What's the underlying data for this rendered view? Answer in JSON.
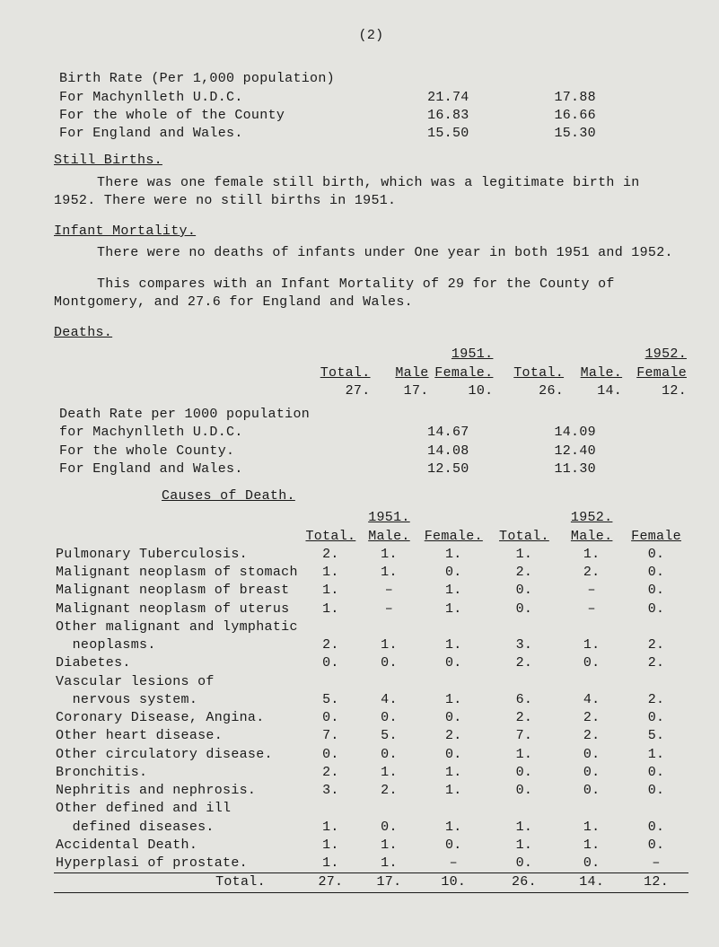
{
  "page_number": "(2)",
  "section_birth": {
    "heading": "Birth Rate (Per 1,000 population)",
    "rows": [
      {
        "label": "For Machynlleth U.D.C.",
        "v1": "21.74",
        "v2": "17.88"
      },
      {
        "label": "For the whole of the County",
        "v1": "16.83",
        "v2": "16.66"
      },
      {
        "label": "For England and Wales.",
        "v1": "15.50",
        "v2": "15.30"
      }
    ]
  },
  "still_births_heading": "Still Births.",
  "still_p1": "There was one female still birth, which was a legitimate birth in 1952.  There were no still births in 1951.",
  "infant_heading": "Infant Mortality.",
  "infant_p1": "There were no deaths of infants under One year in both 1951 and 1952.",
  "infant_p2": "This compares with an Infant Mortality of 29 for the County of Montgomery, and 27.6 for England and Wales.",
  "deaths_heading": "Deaths.",
  "deaths_years": {
    "y1": "1951.",
    "y2": "1952."
  },
  "deaths_cols": {
    "total1": "Total.",
    "male1": "Male",
    "female1": "Female.",
    "total2": "Total.",
    "male2": "Male.",
    "female2": "Female"
  },
  "deaths_nums": {
    "a": "27.",
    "b": "17.",
    "c": "10.",
    "d": "26.",
    "e": "14.",
    "f": "12."
  },
  "death_rate_rows": [
    {
      "label": "Death Rate per 1000 population",
      "v1": "",
      "v2": ""
    },
    {
      "label": "for Machynlleth U.D.C.",
      "v1": "14.67",
      "v2": "14.09"
    },
    {
      "label": "For the whole County.",
      "v1": "14.08",
      "v2": "12.40"
    },
    {
      "label": "For England and Wales.",
      "v1": "12.50",
      "v2": "11.30"
    }
  ],
  "causes_heading": "Causes of Death.",
  "causes_years": {
    "y1": "1951.",
    "y2": "1952."
  },
  "causes_cols": {
    "total1": "Total.",
    "male1": "Male.",
    "female1": "Female.",
    "total2": "Total.",
    "male2": "Male.",
    "female2": "Female"
  },
  "causes_rows": [
    [
      "Pulmonary Tuberculosis.",
      "2.",
      "1.",
      "1.",
      "1.",
      "1.",
      "0."
    ],
    [
      "Malignant neoplasm of stomach",
      "1.",
      "1.",
      "0.",
      "2.",
      "2.",
      "0."
    ],
    [
      "Malignant neoplasm of breast",
      "1.",
      "–",
      "1.",
      "0.",
      "–",
      "0."
    ],
    [
      "Malignant neoplasm of uterus",
      "1.",
      "–",
      "1.",
      "0.",
      "–",
      "0."
    ],
    [
      "Other malignant and lymphatic",
      "",
      "",
      "",
      "",
      "",
      ""
    ],
    [
      "  neoplasms.",
      "2.",
      "1.",
      "1.",
      "3.",
      "1.",
      "2."
    ],
    [
      "Diabetes.",
      "0.",
      "0.",
      "0.",
      "2.",
      "0.",
      "2."
    ],
    [
      "Vascular lesions of",
      "",
      "",
      "",
      "",
      "",
      ""
    ],
    [
      "  nervous system.",
      "5.",
      "4.",
      "1.",
      "6.",
      "4.",
      "2."
    ],
    [
      "Coronary Disease, Angina.",
      "0.",
      "0.",
      "0.",
      "2.",
      "2.",
      "0."
    ],
    [
      "Other heart disease.",
      "7.",
      "5.",
      "2.",
      "7.",
      "2.",
      "5."
    ],
    [
      "Other circulatory disease.",
      "0.",
      "0.",
      "0.",
      "1.",
      "0.",
      "1."
    ],
    [
      "Bronchitis.",
      "2.",
      "1.",
      "1.",
      "0.",
      "0.",
      "0."
    ],
    [
      "Nephritis and nephrosis.",
      "3.",
      "2.",
      "1.",
      "0.",
      "0.",
      "0."
    ],
    [
      "Other defined and ill",
      "",
      "",
      "",
      "",
      "",
      ""
    ],
    [
      "  defined diseases.",
      "1.",
      "0.",
      "1.",
      "1.",
      "1.",
      "0."
    ],
    [
      "Accidental Death.",
      "1.",
      "1.",
      "0.",
      "1.",
      "1.",
      "0."
    ],
    [
      "Hyperplasi of prostate.",
      "1.",
      "1.",
      "–",
      "0.",
      "0.",
      "–"
    ]
  ],
  "causes_total": [
    "Total.",
    "27.",
    "17.",
    "10.",
    "26.",
    "14.",
    "12."
  ]
}
